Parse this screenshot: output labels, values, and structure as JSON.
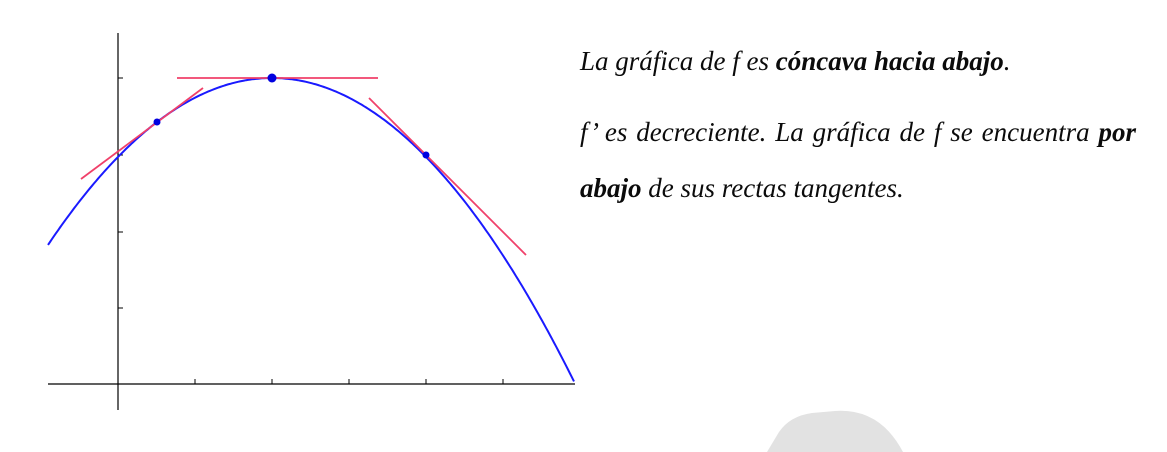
{
  "text": {
    "line1": {
      "pre": "La gráfica de ",
      "f": "f",
      "mid": " es ",
      "bold": "cóncava hacia abajo",
      "end": "."
    },
    "para2": {
      "a": "f’ es decreciente. La gráfica de f se encuentra ",
      "bold1": "por",
      "space": " ",
      "bold2": "abajo",
      "b": " de sus rectas tangentes."
    }
  },
  "colors": {
    "curve": "#1a1aff",
    "tangent": "#f0406a",
    "point": "#0000e0",
    "axis": "#000000",
    "watermark": "#e2e2e2"
  }
}
